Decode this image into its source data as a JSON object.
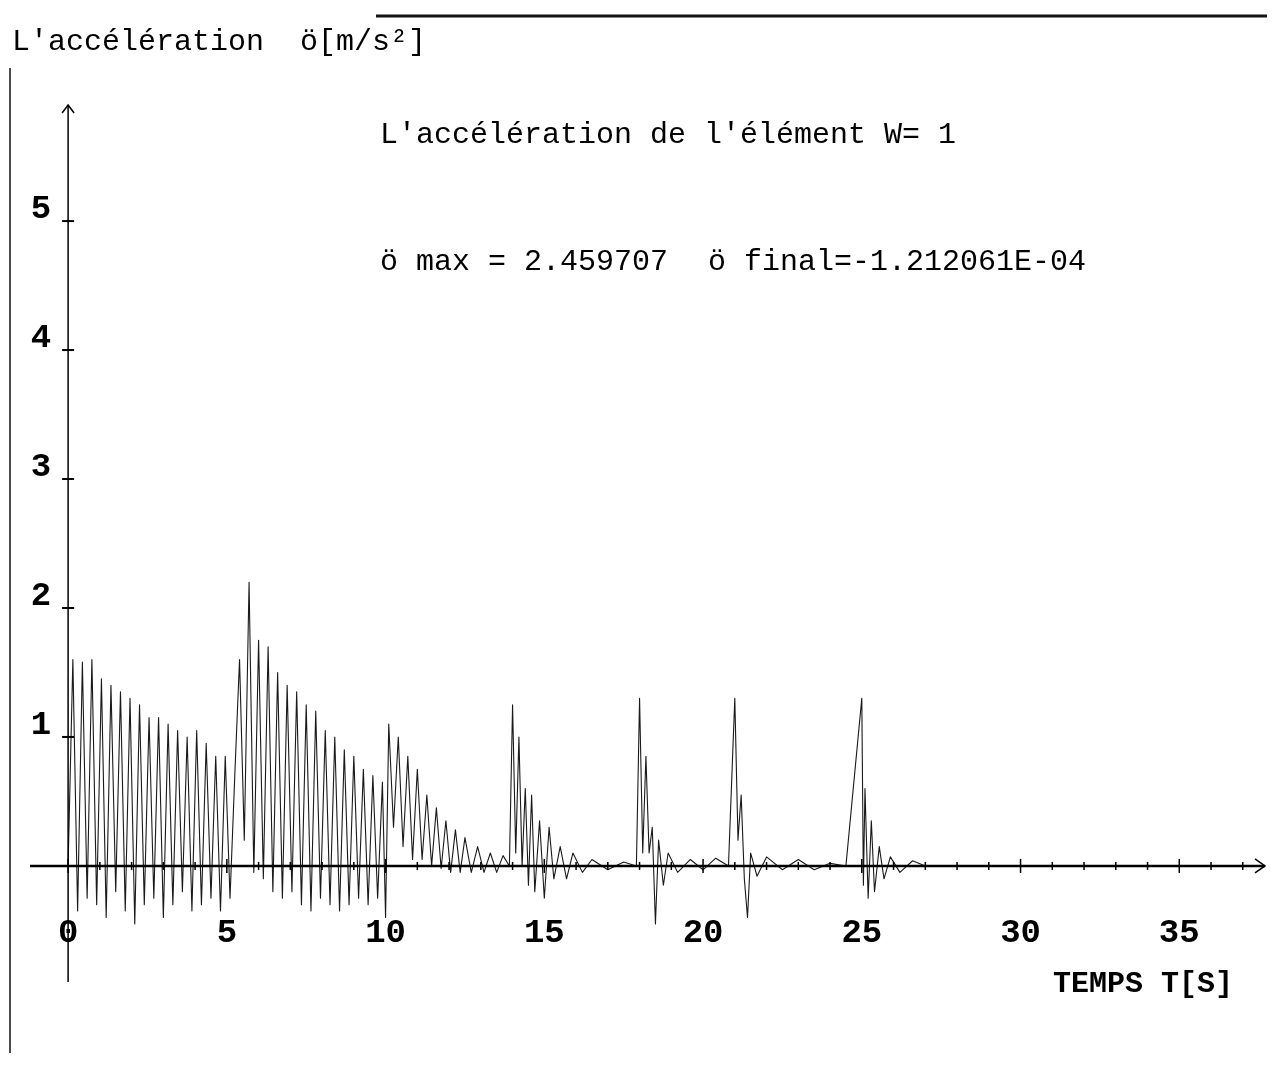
{
  "chart_data": {
    "type": "line",
    "title": "L'accélération de l'élément W= 1",
    "ylabel": "L'accélération  ö[m/s²]",
    "xlabel": "TEMPS T[S]",
    "annotations": [
      "ö max = 2.459707",
      "ö final=-1.212061E-04"
    ],
    "xlim": [
      -1.2,
      37.7
    ],
    "ylim": [
      -0.9,
      5.9
    ],
    "xticks": [
      0,
      {
        "value": 1,
        "label": null
      },
      {
        "value": 2,
        "label": null
      },
      {
        "value": 3,
        "label": null
      },
      {
        "value": 4,
        "label": null
      },
      5,
      {
        "value": 6,
        "label": null
      },
      {
        "value": 7,
        "label": null
      },
      {
        "value": 8,
        "label": null
      },
      {
        "value": 9,
        "label": null
      },
      10,
      {
        "value": 11,
        "label": null
      },
      {
        "value": 12,
        "label": null
      },
      {
        "value": 13,
        "label": null
      },
      {
        "value": 14,
        "label": null
      },
      15,
      {
        "value": 16,
        "label": null
      },
      {
        "value": 17,
        "label": null
      },
      {
        "value": 18,
        "label": null
      },
      {
        "value": 19,
        "label": null
      },
      20,
      {
        "value": 21,
        "label": null
      },
      {
        "value": 22,
        "label": null
      },
      {
        "value": 23,
        "label": null
      },
      {
        "value": 24,
        "label": null
      },
      25,
      {
        "value": 26,
        "label": null
      },
      {
        "value": 27,
        "label": null
      },
      {
        "value": 28,
        "label": null
      },
      {
        "value": 29,
        "label": null
      },
      30,
      {
        "value": 31,
        "label": null
      },
      {
        "value": 32,
        "label": null
      },
      {
        "value": 33,
        "label": null
      },
      {
        "value": 34,
        "label": null
      },
      35,
      {
        "value": 36,
        "label": null
      },
      {
        "value": 37,
        "label": null
      }
    ],
    "yticks": [
      1,
      2,
      3,
      4,
      5
    ],
    "grid": false,
    "marker": "none",
    "line_style": "solid",
    "series": [
      {
        "color": "#1a1a1a",
        "x": [
          0,
          0.15,
          0.3,
          0.45,
          0.6,
          0.75,
          0.9,
          1.05,
          1.2,
          1.35,
          1.5,
          1.65,
          1.8,
          1.95,
          2.1,
          2.25,
          2.4,
          2.55,
          2.7,
          2.85,
          3.0,
          3.15,
          3.3,
          3.45,
          3.6,
          3.75,
          3.9,
          4.05,
          4.2,
          4.35,
          4.5,
          4.65,
          4.8,
          4.95,
          5.1,
          5.25,
          5.4,
          5.55,
          5.7,
          5.85,
          6.0,
          6.15,
          6.3,
          6.45,
          6.6,
          6.75,
          6.9,
          7.05,
          7.2,
          7.35,
          7.5,
          7.65,
          7.8,
          7.95,
          8.1,
          8.25,
          8.4,
          8.55,
          8.7,
          8.85,
          9.0,
          9.15,
          9.3,
          9.45,
          9.6,
          9.75,
          9.9,
          10.0,
          10.1,
          10.25,
          10.4,
          10.55,
          10.7,
          10.85,
          11.0,
          11.15,
          11.3,
          11.45,
          11.6,
          11.75,
          11.9,
          12.05,
          12.2,
          12.35,
          12.5,
          12.7,
          12.9,
          13.1,
          13.3,
          13.5,
          13.7,
          13.9,
          14.0,
          14.1,
          14.2,
          14.3,
          14.4,
          14.5,
          14.6,
          14.7,
          14.85,
          15.0,
          15.15,
          15.3,
          15.5,
          15.7,
          15.9,
          16.2,
          16.5,
          17.0,
          17.5,
          17.9,
          18.0,
          18.1,
          18.2,
          18.3,
          18.4,
          18.5,
          18.6,
          18.75,
          18.9,
          19.2,
          19.6,
          20.0,
          20.4,
          20.8,
          21.0,
          21.1,
          21.2,
          21.3,
          21.4,
          21.5,
          21.7,
          22.0,
          22.5,
          23.0,
          23.5,
          24.0,
          24.5,
          25.0,
          25.05,
          25.1,
          25.2,
          25.3,
          25.4,
          25.55,
          25.7,
          25.9,
          26.2,
          26.6,
          27.0
        ],
        "values": [
          0,
          1.6,
          -0.35,
          1.58,
          -0.25,
          1.6,
          -0.3,
          1.45,
          -0.4,
          1.4,
          -0.2,
          1.35,
          -0.35,
          1.3,
          -0.45,
          1.25,
          -0.3,
          1.15,
          -0.25,
          1.15,
          -0.4,
          1.1,
          -0.3,
          1.05,
          -0.2,
          1.0,
          -0.35,
          1.05,
          -0.3,
          0.95,
          -0.25,
          0.85,
          -0.35,
          0.85,
          -0.25,
          0.7,
          1.6,
          0.2,
          2.2,
          -0.05,
          1.75,
          -0.1,
          1.7,
          -0.2,
          1.5,
          -0.25,
          1.4,
          -0.2,
          1.35,
          -0.3,
          1.25,
          -0.35,
          1.2,
          -0.25,
          1.05,
          -0.3,
          1.0,
          -0.35,
          0.9,
          -0.3,
          0.85,
          -0.25,
          0.75,
          -0.3,
          0.7,
          -0.25,
          0.65,
          -0.4,
          1.1,
          0.3,
          1.0,
          0.15,
          0.85,
          0.05,
          0.75,
          0.05,
          0.55,
          0.0,
          0.45,
          -0.02,
          0.35,
          -0.05,
          0.28,
          -0.05,
          0.22,
          -0.05,
          0.15,
          -0.05,
          0.1,
          -0.05,
          0.08,
          0.0,
          1.25,
          0.1,
          1.0,
          0.0,
          0.6,
          -0.15,
          0.55,
          -0.2,
          0.35,
          -0.25,
          0.3,
          -0.1,
          0.15,
          -0.1,
          0.1,
          -0.05,
          0.05,
          -0.03,
          0.03,
          0.0,
          1.3,
          0.1,
          0.85,
          0.1,
          0.3,
          -0.45,
          0.2,
          -0.15,
          0.1,
          -0.05,
          0.05,
          -0.03,
          0.06,
          0.0,
          1.3,
          0.2,
          0.55,
          -0.1,
          -0.4,
          0.1,
          -0.08,
          0.07,
          -0.03,
          0.05,
          -0.03,
          0.02,
          0.0,
          1.3,
          -0.15,
          0.6,
          -0.25,
          0.35,
          -0.2,
          0.15,
          -0.1,
          0.07,
          -0.05,
          0.04,
          0.0
        ]
      }
    ]
  }
}
